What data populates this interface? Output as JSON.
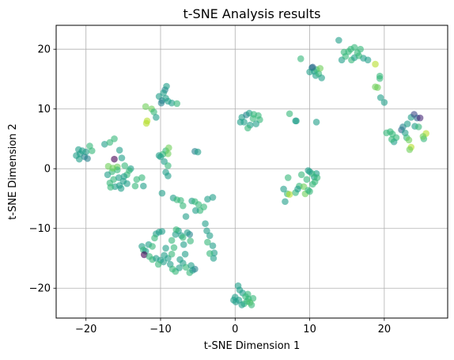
{
  "chart_data": {
    "type": "scatter",
    "title": "t-SNE Analysis results",
    "xlabel": "t-SNE Dimension 1",
    "ylabel": "t-SNE Dimension 2",
    "xlim": [
      -24,
      28.5
    ],
    "ylim": [
      -25,
      24
    ],
    "xticks": [
      {
        "value": -20,
        "label": "−20"
      },
      {
        "value": -10,
        "label": "−10"
      },
      {
        "value": 0,
        "label": "0"
      },
      {
        "value": 10,
        "label": "10"
      },
      {
        "value": 20,
        "label": "20"
      }
    ],
    "yticks": [
      {
        "value": -20,
        "label": "−20"
      },
      {
        "value": -10,
        "label": "−10"
      },
      {
        "value": 0,
        "label": "0"
      },
      {
        "value": 10,
        "label": "10"
      },
      {
        "value": 20,
        "label": "20"
      }
    ],
    "grid": true,
    "marker_alpha": 0.6,
    "colormap": "viridis",
    "palette": [
      "#440154",
      "#482878",
      "#3e4989",
      "#31688e",
      "#26828e",
      "#1f9e89",
      "#35b779",
      "#6ece58",
      "#b5de2b",
      "#fde725"
    ],
    "points": [
      [
        -20.8,
        2.5,
        0.5
      ],
      [
        -20.2,
        2.0,
        0.45
      ],
      [
        -21.3,
        2.2,
        0.55
      ],
      [
        -20.5,
        3.0,
        0.6
      ],
      [
        -19.8,
        1.7,
        0.4
      ],
      [
        -20.9,
        1.6,
        0.5
      ],
      [
        -19.5,
        3.8,
        0.65
      ],
      [
        -20.0,
        2.8,
        0.55
      ],
      [
        -19.2,
        3.0,
        0.7
      ],
      [
        -21.0,
        3.2,
        0.5
      ],
      [
        -17.5,
        4.1,
        0.6
      ],
      [
        -16.8,
        4.4,
        0.65
      ],
      [
        -16.2,
        5.0,
        0.7
      ],
      [
        -16.2,
        1.6,
        0.02
      ],
      [
        -15.5,
        3.1,
        0.6
      ],
      [
        -15.2,
        1.8,
        0.55
      ],
      [
        -14.8,
        0.5,
        0.65
      ],
      [
        -14.0,
        0.0,
        0.6
      ],
      [
        -14.5,
        -1.0,
        0.7
      ],
      [
        -15.8,
        0.3,
        0.75
      ],
      [
        -16.5,
        -0.5,
        0.62
      ],
      [
        -17.1,
        -1.0,
        0.6
      ],
      [
        -16.3,
        -1.8,
        0.68
      ],
      [
        -16.8,
        -2.4,
        0.72
      ],
      [
        -16.1,
        -3.0,
        0.5
      ],
      [
        -15.5,
        -2.8,
        0.6
      ],
      [
        -15.0,
        -2.1,
        0.58
      ],
      [
        -14.5,
        -2.5,
        0.55
      ],
      [
        -15.3,
        -3.3,
        0.6
      ],
      [
        -16.7,
        -3.1,
        0.65
      ],
      [
        -13.2,
        -1.8,
        0.72
      ],
      [
        -12.5,
        -1.5,
        0.66
      ],
      [
        -12.3,
        -2.9,
        0.6
      ],
      [
        -13.4,
        -2.9,
        0.62
      ],
      [
        -15.8,
        -0.2,
        0.7
      ],
      [
        -16.4,
        0.1,
        0.75
      ],
      [
        -14.9,
        -1.3,
        0.55
      ],
      [
        -17.0,
        0.4,
        0.8
      ],
      [
        -15.6,
        -1.5,
        0.6
      ],
      [
        -14.2,
        -0.3,
        0.72
      ],
      [
        -12.0,
        10.4,
        0.8
      ],
      [
        -11.8,
        8.0,
        0.85
      ],
      [
        -11.2,
        10.0,
        0.75
      ],
      [
        -10.9,
        9.5,
        0.65
      ],
      [
        -10.6,
        8.6,
        0.55
      ],
      [
        -11.9,
        7.6,
        0.9
      ],
      [
        -10.2,
        12.1,
        0.5
      ],
      [
        -9.8,
        11.4,
        0.45
      ],
      [
        -9.3,
        11.8,
        0.55
      ],
      [
        -9.9,
        11.0,
        0.4
      ],
      [
        -9.0,
        11.3,
        0.5
      ],
      [
        -8.5,
        11.0,
        0.6
      ],
      [
        -7.8,
        10.9,
        0.65
      ],
      [
        -9.4,
        13.2,
        0.45
      ],
      [
        -9.2,
        13.8,
        0.5
      ],
      [
        -9.6,
        12.7,
        0.55
      ],
      [
        -10.2,
        2.2,
        0.55
      ],
      [
        -9.3,
        3.0,
        0.7
      ],
      [
        -8.9,
        3.5,
        0.8
      ],
      [
        -9.0,
        2.5,
        0.75
      ],
      [
        -9.5,
        1.2,
        0.6
      ],
      [
        -9.0,
        0.5,
        0.65
      ],
      [
        -9.3,
        -0.6,
        0.6
      ],
      [
        -9.0,
        -1.2,
        0.55
      ],
      [
        -9.7,
        2.4,
        0.7
      ],
      [
        -10.0,
        2.0,
        0.6
      ],
      [
        -5.4,
        2.9,
        0.45
      ],
      [
        -5.0,
        2.8,
        0.5
      ],
      [
        -9.8,
        -4.1,
        0.55
      ],
      [
        -8.3,
        -4.9,
        0.6
      ],
      [
        -7.8,
        -5.2,
        0.65
      ],
      [
        -7.3,
        -5.3,
        0.62
      ],
      [
        -7.0,
        -6.2,
        0.7
      ],
      [
        -6.6,
        -8.0,
        0.6
      ],
      [
        -5.8,
        -5.4,
        0.55
      ],
      [
        -5.4,
        -5.5,
        0.68
      ],
      [
        -4.7,
        -7.0,
        0.7
      ],
      [
        -4.2,
        -6.4,
        0.66
      ],
      [
        -3.7,
        -5.1,
        0.5
      ],
      [
        -3.0,
        -4.8,
        0.55
      ],
      [
        -4.9,
        -6.0,
        0.62
      ],
      [
        -5.3,
        -7.0,
        0.6
      ],
      [
        -10.6,
        -10.9,
        0.55
      ],
      [
        -10.2,
        -10.6,
        0.6
      ],
      [
        -9.8,
        -10.5,
        0.5
      ],
      [
        -10.8,
        -11.6,
        0.65
      ],
      [
        -9.3,
        -13.3,
        0.6
      ],
      [
        -8.2,
        -13.2,
        0.66
      ],
      [
        -8.5,
        -12.0,
        0.62
      ],
      [
        -8.0,
        -11.0,
        0.55
      ],
      [
        -7.6,
        -10.4,
        0.58
      ],
      [
        -7.2,
        -11.2,
        0.6
      ],
      [
        -7.9,
        -10.2,
        0.62
      ],
      [
        -7.0,
        -11.5,
        0.65
      ],
      [
        -6.1,
        -11.0,
        0.45
      ],
      [
        -6.4,
        -10.7,
        0.55
      ],
      [
        -6.9,
        -12.7,
        0.6
      ],
      [
        -6.0,
        -12.1,
        0.62
      ],
      [
        -4.0,
        -9.2,
        0.55
      ],
      [
        -3.8,
        -10.4,
        0.5
      ],
      [
        -3.4,
        -11.2,
        0.6
      ],
      [
        -3.7,
        -12.3,
        0.62
      ],
      [
        -3.0,
        -12.9,
        0.55
      ],
      [
        -2.8,
        -14.1,
        0.6
      ],
      [
        -3.4,
        -14.2,
        0.65
      ],
      [
        -2.9,
        -15.0,
        0.55
      ],
      [
        -12.5,
        -13.0,
        0.6
      ],
      [
        -12.3,
        -13.6,
        0.62
      ],
      [
        -12.0,
        -13.8,
        0.58
      ],
      [
        -12.2,
        -14.4,
        0.02
      ],
      [
        -11.6,
        -12.7,
        0.6
      ],
      [
        -11.1,
        -13.0,
        0.62
      ],
      [
        -11.5,
        -14.7,
        0.66
      ],
      [
        -11.1,
        -15.2,
        0.65
      ],
      [
        -10.6,
        -15.0,
        0.6
      ],
      [
        -10.0,
        -15.3,
        0.55
      ],
      [
        -9.6,
        -15.6,
        0.5
      ],
      [
        -9.0,
        -15.0,
        0.55
      ],
      [
        -8.7,
        -16.0,
        0.6
      ],
      [
        -8.4,
        -16.8,
        0.62
      ],
      [
        -8.0,
        -17.2,
        0.65
      ],
      [
        -7.5,
        -16.6,
        0.6
      ],
      [
        -7.0,
        -15.8,
        0.55
      ],
      [
        -6.6,
        -16.5,
        0.62
      ],
      [
        -6.1,
        -17.4,
        0.64
      ],
      [
        -5.7,
        -17.0,
        0.55
      ],
      [
        -5.4,
        -16.8,
        0.45
      ],
      [
        -5.9,
        -16.2,
        0.58
      ],
      [
        -7.4,
        -15.2,
        0.6
      ],
      [
        -8.5,
        -14.3,
        0.66
      ],
      [
        -10.3,
        -16.0,
        0.62
      ],
      [
        -9.5,
        -14.5,
        0.6
      ],
      [
        -6.7,
        -14.3,
        0.58
      ],
      [
        0.4,
        -19.6,
        0.5
      ],
      [
        0.6,
        -20.3,
        0.55
      ],
      [
        1.0,
        -20.8,
        0.6
      ],
      [
        1.4,
        -21.4,
        0.66
      ],
      [
        1.8,
        -21.8,
        0.7
      ],
      [
        2.0,
        -22.4,
        0.75
      ],
      [
        2.2,
        -22.8,
        0.72
      ],
      [
        1.6,
        -22.2,
        0.65
      ],
      [
        1.2,
        -22.6,
        0.7
      ],
      [
        0.5,
        -22.0,
        0.6
      ],
      [
        0.0,
        -21.5,
        0.55
      ],
      [
        0.1,
        -22.3,
        0.5
      ],
      [
        -0.2,
        -22.0,
        0.52
      ],
      [
        0.9,
        -22.8,
        0.6
      ],
      [
        1.7,
        -21.0,
        0.65
      ],
      [
        2.4,
        -21.7,
        0.68
      ],
      [
        0.9,
        8.6,
        0.6
      ],
      [
        1.2,
        7.8,
        0.55
      ],
      [
        1.5,
        9.0,
        0.45
      ],
      [
        1.9,
        9.3,
        0.5
      ],
      [
        2.5,
        9.1,
        0.65
      ],
      [
        3.1,
        8.9,
        0.7
      ],
      [
        3.3,
        8.2,
        0.66
      ],
      [
        2.8,
        7.5,
        0.6
      ],
      [
        2.0,
        7.3,
        0.55
      ],
      [
        1.7,
        6.8,
        0.62
      ],
      [
        0.7,
        7.8,
        0.6
      ],
      [
        2.4,
        8.4,
        0.64
      ],
      [
        6.5,
        -3.4,
        0.55
      ],
      [
        6.7,
        -5.5,
        0.6
      ],
      [
        7.1,
        -1.5,
        0.62
      ],
      [
        7.0,
        -4.2,
        0.7
      ],
      [
        7.3,
        -4.3,
        0.92
      ],
      [
        8.1,
        -4.0,
        0.62
      ],
      [
        8.6,
        -2.9,
        0.66
      ],
      [
        8.4,
        -3.4,
        0.6
      ],
      [
        8.9,
        -1.0,
        0.7
      ],
      [
        9.2,
        -3.0,
        0.75
      ],
      [
        9.4,
        -4.2,
        0.8
      ],
      [
        9.8,
        -3.6,
        0.72
      ],
      [
        10.0,
        -3.8,
        0.66
      ],
      [
        10.4,
        -2.6,
        0.62
      ],
      [
        10.6,
        -1.4,
        0.55
      ],
      [
        10.9,
        -0.8,
        0.6
      ],
      [
        10.3,
        -0.8,
        0.7
      ],
      [
        9.6,
        -1.8,
        0.64
      ],
      [
        10.0,
        -0.5,
        0.5
      ],
      [
        11.0,
        -1.5,
        0.66
      ],
      [
        10.7,
        -2.2,
        0.62
      ],
      [
        9.8,
        -0.3,
        0.58
      ],
      [
        7.3,
        9.2,
        0.62
      ],
      [
        8.1,
        8.0,
        0.55
      ],
      [
        8.2,
        8.0,
        0.5
      ],
      [
        10.9,
        7.8,
        0.6
      ],
      [
        8.8,
        18.4,
        0.68
      ],
      [
        10.3,
        16.9,
        0.45
      ],
      [
        10.6,
        16.3,
        0.5
      ],
      [
        10.0,
        16.2,
        0.55
      ],
      [
        10.8,
        15.6,
        0.6
      ],
      [
        11.2,
        15.9,
        0.62
      ],
      [
        11.6,
        15.2,
        0.58
      ],
      [
        10.9,
        16.6,
        0.7
      ],
      [
        11.4,
        16.8,
        0.75
      ],
      [
        10.4,
        17.0,
        0.3
      ],
      [
        13.9,
        21.5,
        0.55
      ],
      [
        14.3,
        18.2,
        0.6
      ],
      [
        14.8,
        18.8,
        0.66
      ],
      [
        15.2,
        19.6,
        0.7
      ],
      [
        15.6,
        18.2,
        0.62
      ],
      [
        16.0,
        18.6,
        0.6
      ],
      [
        16.4,
        19.4,
        0.64
      ],
      [
        16.8,
        20.0,
        0.68
      ],
      [
        17.2,
        18.5,
        0.6
      ],
      [
        17.8,
        18.2,
        0.55
      ],
      [
        16.0,
        20.3,
        0.66
      ],
      [
        15.5,
        20.0,
        0.7
      ],
      [
        14.6,
        19.5,
        0.62
      ],
      [
        16.6,
        18.9,
        0.72
      ],
      [
        18.8,
        17.5,
        0.85
      ],
      [
        18.8,
        13.7,
        0.8
      ],
      [
        19.1,
        13.6,
        0.82
      ],
      [
        19.4,
        15.5,
        0.72
      ],
      [
        19.4,
        15.1,
        0.66
      ],
      [
        19.5,
        11.9,
        0.6
      ],
      [
        20.0,
        11.1,
        0.55
      ],
      [
        20.3,
        6.0,
        0.65
      ],
      [
        20.8,
        6.2,
        0.7
      ],
      [
        21.1,
        5.8,
        0.66
      ],
      [
        21.6,
        5.2,
        0.62
      ],
      [
        21.3,
        4.5,
        0.6
      ],
      [
        21.0,
        4.9,
        0.64
      ],
      [
        22.3,
        6.5,
        0.3
      ],
      [
        22.5,
        7.0,
        0.45
      ],
      [
        22.8,
        6.0,
        0.55
      ],
      [
        23.0,
        5.2,
        0.72
      ],
      [
        23.3,
        4.8,
        0.75
      ],
      [
        23.6,
        3.6,
        0.85
      ],
      [
        23.4,
        3.2,
        0.8
      ],
      [
        23.1,
        7.5,
        0.5
      ],
      [
        23.6,
        8.6,
        0.55
      ],
      [
        24.1,
        7.1,
        0.6
      ],
      [
        24.0,
        9.1,
        0.2
      ],
      [
        24.4,
        8.5,
        0.3
      ],
      [
        24.8,
        8.5,
        0.1
      ],
      [
        25.3,
        5.0,
        0.66
      ],
      [
        25.6,
        5.9,
        0.9
      ],
      [
        25.2,
        5.4,
        0.8
      ],
      [
        24.6,
        7.0,
        0.62
      ]
    ]
  }
}
